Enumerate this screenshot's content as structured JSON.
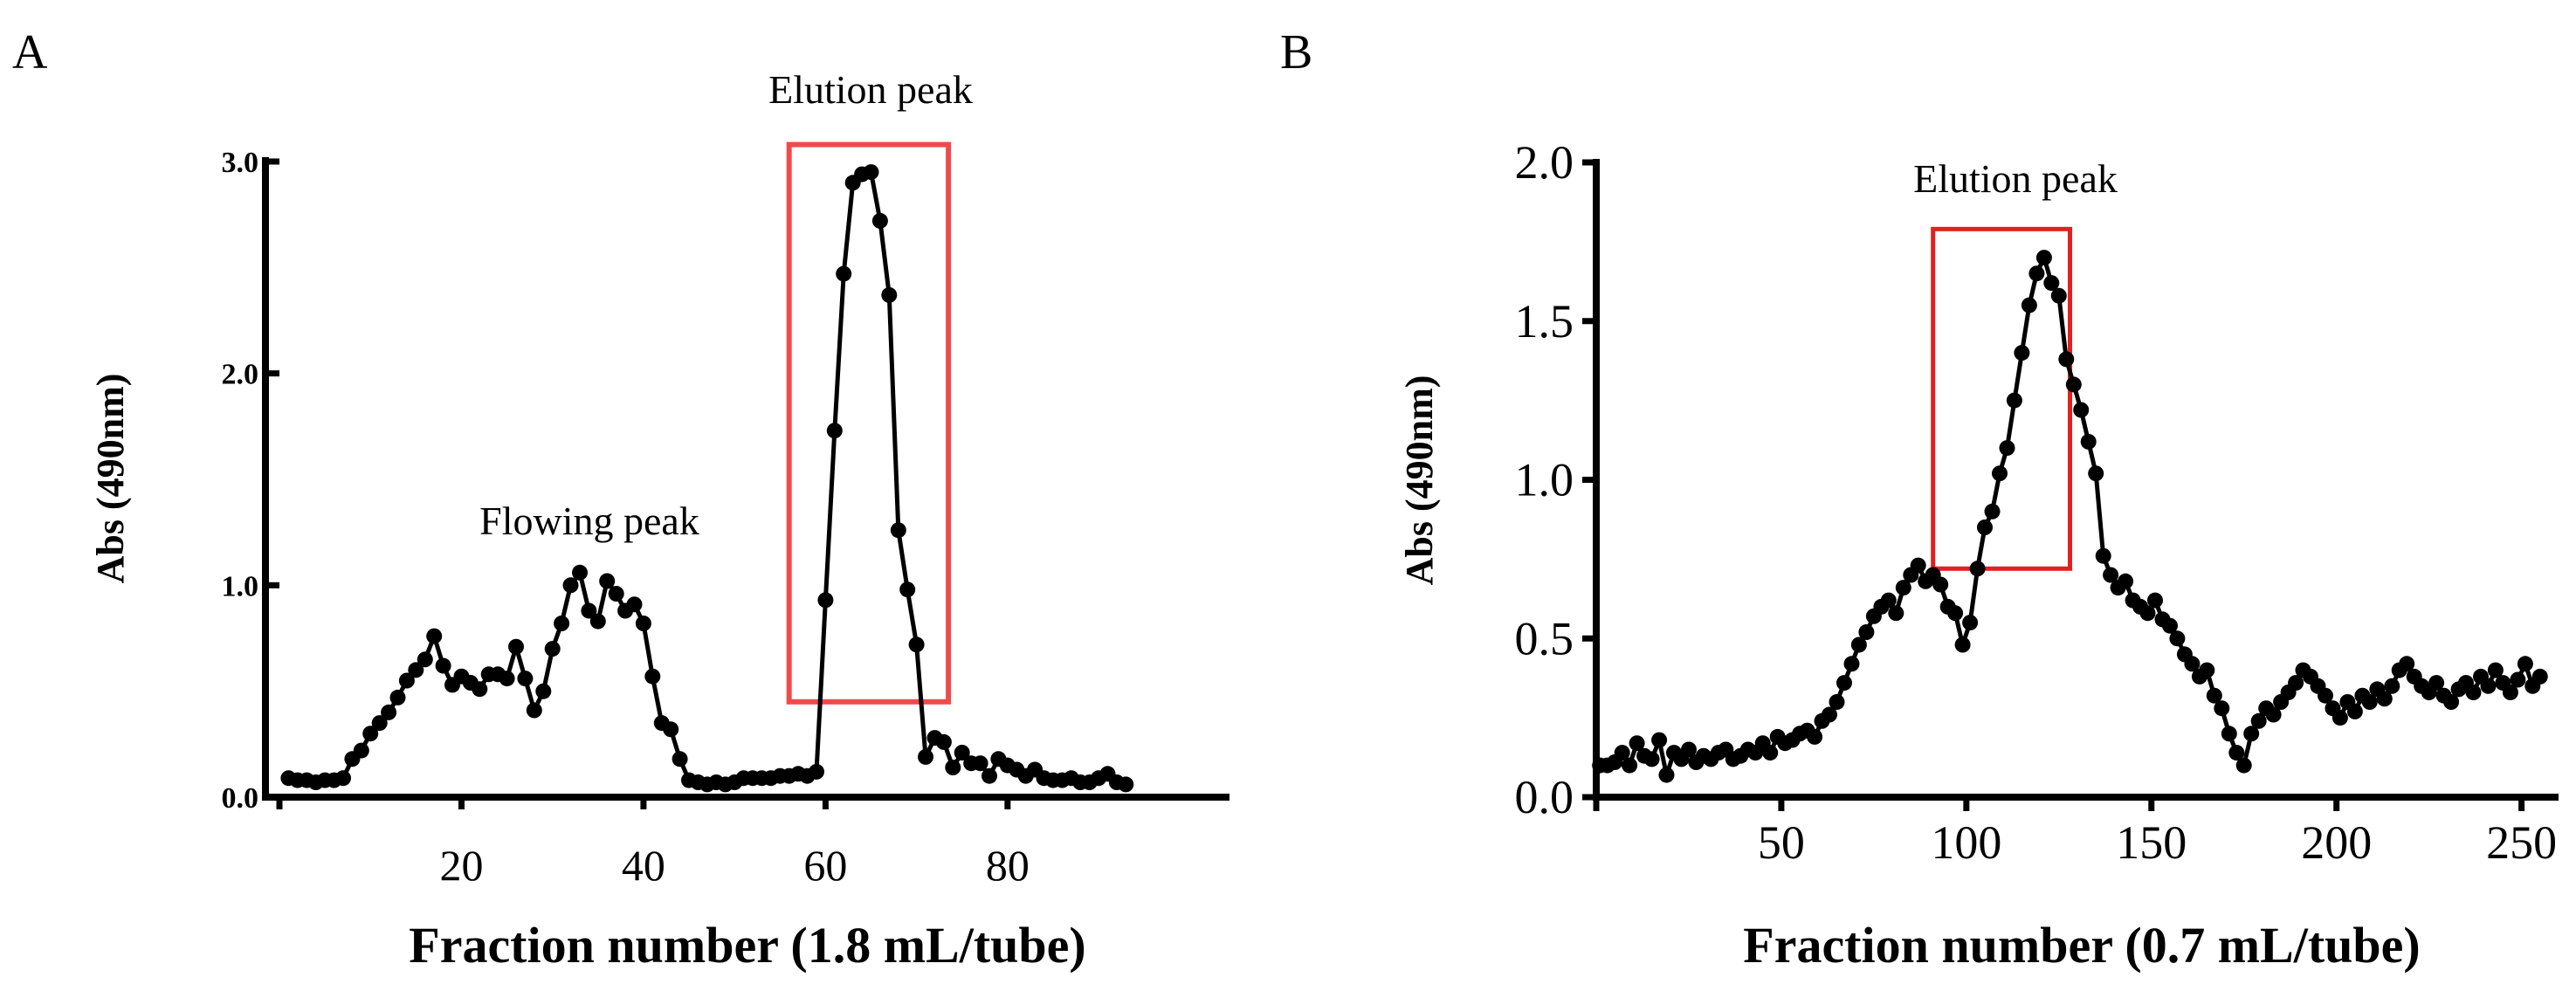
{
  "chart_data": [
    {
      "panel": "A",
      "type": "line",
      "markers": "circle",
      "title": "",
      "xlabel": "Fraction number (1.8 mL/tube)",
      "ylabel": "Abs (490nm)",
      "xlim": [
        0,
        104
      ],
      "ylim": [
        0,
        3.0
      ],
      "xticks": [
        20,
        40,
        60,
        80
      ],
      "yticks": [
        0,
        1.0,
        2.0,
        3.0
      ],
      "ytick_labels": [
        "0.0",
        "1.0",
        "2.0",
        "3.0"
      ],
      "annotations": [
        {
          "text": "Flowing peak",
          "x": 33,
          "y": 1.26
        },
        {
          "text": "Elution peak",
          "x": 65,
          "y": 3.28
        }
      ],
      "highlight": {
        "x0": 56,
        "x1": 73.5,
        "y0": 0.45,
        "y1": 3.08,
        "color": "#ef4b4b"
      },
      "series": [
        {
          "name": "Abs (490nm)",
          "x": [
            1,
            2,
            3,
            4,
            5,
            6,
            7,
            8,
            9,
            10,
            11,
            12,
            13,
            14,
            15,
            16,
            17,
            18,
            19,
            20,
            21,
            22,
            23,
            24,
            25,
            26,
            27,
            28,
            29,
            30,
            31,
            32,
            33,
            34,
            35,
            36,
            37,
            38,
            39,
            40,
            41,
            42,
            43,
            44,
            45,
            46,
            47,
            48,
            49,
            50,
            51,
            52,
            53,
            54,
            55,
            56,
            57,
            58,
            59,
            60,
            61,
            62,
            63,
            64,
            65,
            66,
            67,
            68,
            69,
            70,
            71,
            72,
            73,
            74,
            75,
            76,
            77,
            78,
            79,
            80,
            81,
            82,
            83,
            84,
            85,
            86,
            87,
            88,
            89,
            90,
            91,
            92,
            93
          ],
          "values": [
            0.09,
            0.08,
            0.08,
            0.07,
            0.08,
            0.08,
            0.09,
            0.18,
            0.22,
            0.3,
            0.35,
            0.4,
            0.47,
            0.55,
            0.6,
            0.65,
            0.76,
            0.62,
            0.53,
            0.57,
            0.54,
            0.51,
            0.58,
            0.58,
            0.56,
            0.71,
            0.56,
            0.41,
            0.5,
            0.7,
            0.82,
            1.0,
            1.06,
            0.88,
            0.83,
            1.02,
            0.96,
            0.88,
            0.91,
            0.82,
            0.57,
            0.35,
            0.32,
            0.18,
            0.08,
            0.07,
            0.06,
            0.07,
            0.06,
            0.07,
            0.09,
            0.09,
            0.09,
            0.09,
            0.1,
            0.1,
            0.11,
            0.1,
            0.12,
            0.93,
            1.73,
            2.47,
            2.9,
            2.94,
            2.95,
            2.72,
            2.37,
            1.26,
            0.98,
            0.72,
            0.19,
            0.28,
            0.26,
            0.14,
            0.21,
            0.16,
            0.16,
            0.1,
            0.18,
            0.15,
            0.13,
            0.1,
            0.13,
            0.09,
            0.08,
            0.08,
            0.09,
            0.07,
            0.07,
            0.09,
            0.11,
            0.07,
            0.06
          ]
        }
      ]
    },
    {
      "panel": "B",
      "type": "line",
      "markers": "circle",
      "title": "",
      "xlabel": "Fraction number (0.7 mL/tube)",
      "ylabel": "Abs (490nm)",
      "xlim": [
        0,
        260
      ],
      "ylim": [
        0,
        2.0
      ],
      "xticks": [
        50,
        100,
        150,
        200,
        250
      ],
      "yticks": [
        0,
        0.5,
        1.0,
        1.5,
        2.0
      ],
      "ytick_labels": [
        "0.0",
        "0.5",
        "1.0",
        "1.5",
        "2.0"
      ],
      "annotations": [
        {
          "text": "Elution peak",
          "x": 110,
          "y": 1.9
        }
      ],
      "highlight": {
        "x0": 91,
        "x1": 128,
        "y0": 0.72,
        "y1": 1.79,
        "color": "#e41f1f"
      },
      "series": [
        {
          "name": "Abs (490nm)",
          "x": [
            1,
            3,
            5,
            7,
            9,
            11,
            13,
            15,
            17,
            19,
            21,
            23,
            25,
            27,
            29,
            31,
            33,
            35,
            37,
            39,
            41,
            43,
            45,
            47,
            49,
            51,
            53,
            55,
            57,
            59,
            61,
            63,
            65,
            67,
            69,
            71,
            73,
            75,
            77,
            79,
            81,
            83,
            85,
            87,
            89,
            91,
            93,
            95,
            97,
            99,
            101,
            103,
            105,
            107,
            109,
            111,
            113,
            115,
            117,
            119,
            121,
            123,
            125,
            127,
            129,
            131,
            133,
            135,
            137,
            139,
            141,
            143,
            145,
            147,
            149,
            151,
            153,
            155,
            157,
            159,
            161,
            163,
            165,
            167,
            169,
            171,
            173,
            175,
            177,
            179,
            181,
            183,
            185,
            187,
            189,
            191,
            193,
            195,
            197,
            199,
            201,
            203,
            205,
            207,
            209,
            211,
            213,
            215,
            217,
            219,
            221,
            223,
            225,
            227,
            229,
            231,
            233,
            235,
            237,
            239,
            241,
            243,
            245,
            247,
            249,
            251,
            253,
            255
          ],
          "values": [
            0.1,
            0.1,
            0.11,
            0.14,
            0.1,
            0.17,
            0.13,
            0.12,
            0.18,
            0.07,
            0.14,
            0.12,
            0.15,
            0.11,
            0.13,
            0.12,
            0.14,
            0.15,
            0.12,
            0.13,
            0.15,
            0.14,
            0.17,
            0.14,
            0.19,
            0.17,
            0.18,
            0.2,
            0.21,
            0.19,
            0.24,
            0.26,
            0.3,
            0.36,
            0.42,
            0.48,
            0.52,
            0.57,
            0.6,
            0.62,
            0.58,
            0.66,
            0.7,
            0.73,
            0.68,
            0.7,
            0.67,
            0.6,
            0.58,
            0.48,
            0.55,
            0.72,
            0.85,
            0.9,
            1.02,
            1.1,
            1.25,
            1.4,
            1.55,
            1.65,
            1.7,
            1.62,
            1.58,
            1.38,
            1.3,
            1.22,
            1.12,
            1.02,
            0.76,
            0.7,
            0.66,
            0.68,
            0.62,
            0.6,
            0.58,
            0.62,
            0.56,
            0.54,
            0.5,
            0.45,
            0.42,
            0.38,
            0.4,
            0.32,
            0.28,
            0.2,
            0.14,
            0.1,
            0.2,
            0.24,
            0.28,
            0.26,
            0.3,
            0.33,
            0.36,
            0.4,
            0.38,
            0.35,
            0.32,
            0.28,
            0.25,
            0.3,
            0.27,
            0.32,
            0.3,
            0.34,
            0.31,
            0.35,
            0.4,
            0.42,
            0.38,
            0.35,
            0.33,
            0.36,
            0.32,
            0.3,
            0.34,
            0.36,
            0.33,
            0.38,
            0.35,
            0.4,
            0.36,
            0.33,
            0.37,
            0.42,
            0.35,
            0.38
          ]
        }
      ]
    }
  ],
  "panels": [
    {
      "letter": "A"
    },
    {
      "letter": "B"
    }
  ]
}
